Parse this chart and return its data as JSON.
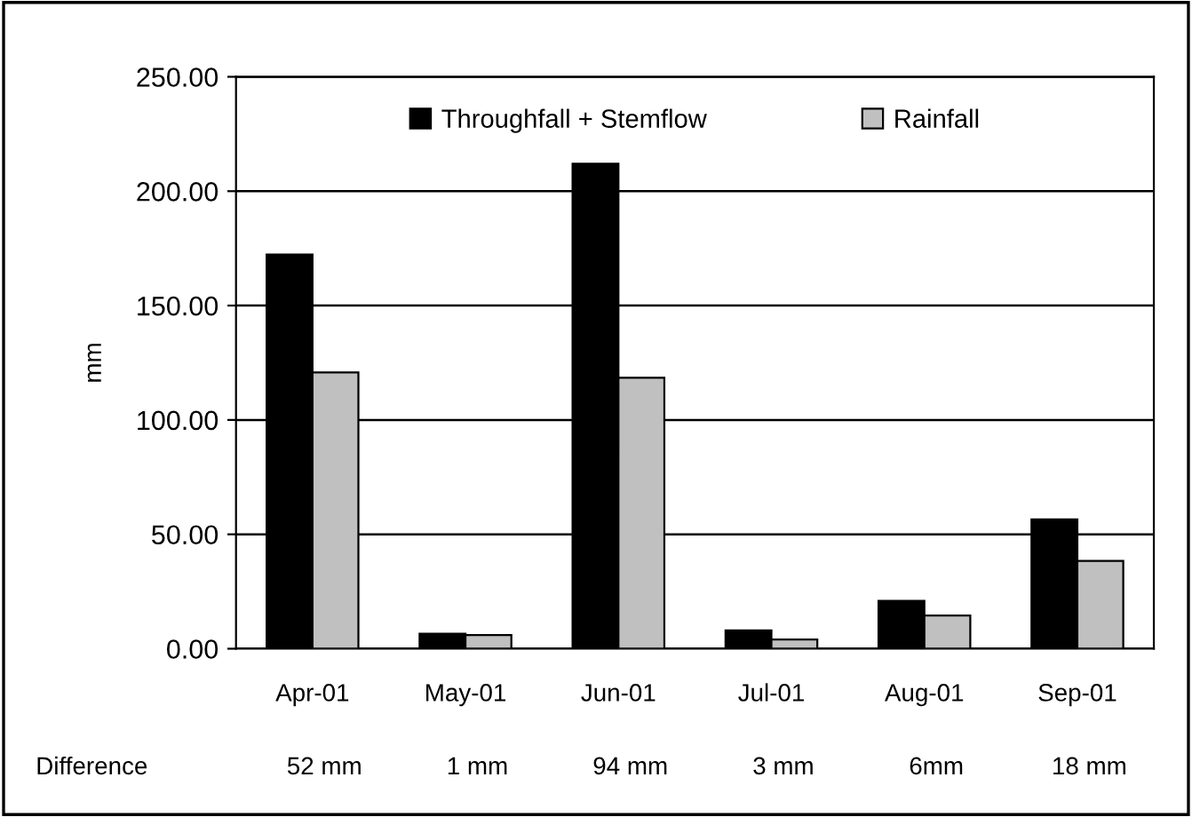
{
  "chart_data": {
    "type": "bar",
    "ylabel": "mm",
    "categories": [
      "Apr-01",
      "May-01",
      "Jun-01",
      "Jul-01",
      "Aug-01",
      "Sep-01"
    ],
    "series": [
      {
        "name": "Throughfall + Stemflow",
        "color": "#000000",
        "values": [
          172.3,
          6.5,
          212,
          8,
          20.9,
          56.5
        ]
      },
      {
        "name": "Rainfall",
        "color": "#c0c0c0",
        "values": [
          120.8,
          6,
          118.4,
          4,
          14.5,
          38.4
        ]
      }
    ],
    "ylim": [
      0,
      250
    ],
    "yticks": [
      {
        "value": 0,
        "label": "0.00"
      },
      {
        "value": 50,
        "label": "50.00"
      },
      {
        "value": 100,
        "label": "100.00"
      },
      {
        "value": 150,
        "label": "150.00"
      },
      {
        "value": 200,
        "label": "200.00"
      },
      {
        "value": 250,
        "label": "250.00"
      }
    ],
    "grid": "y",
    "legend": "top",
    "annotations": [
      "Difference",
      "52 mm",
      "1 mm",
      "94 mm",
      "3 mm",
      "6mm",
      "18 mm"
    ]
  }
}
